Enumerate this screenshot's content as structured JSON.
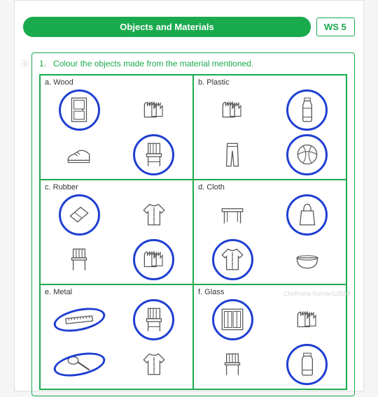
{
  "header": {
    "title": "Objects and Materials",
    "ws_label": "WS  5"
  },
  "instruction": {
    "number": "1.",
    "text": "Colour the objects made from the material mentioned."
  },
  "cells": [
    {
      "letter": "a.",
      "material": "Wood",
      "items": [
        {
          "name": "door",
          "circled": true
        },
        {
          "name": "gloves",
          "circled": false
        },
        {
          "name": "shoe",
          "circled": false
        },
        {
          "name": "chair",
          "circled": true
        }
      ]
    },
    {
      "letter": "b.",
      "material": "Plastic",
      "items": [
        {
          "name": "gloves",
          "circled": false
        },
        {
          "name": "bottle",
          "circled": true
        },
        {
          "name": "pants",
          "circled": false
        },
        {
          "name": "ball",
          "circled": true
        }
      ]
    },
    {
      "letter": "c.",
      "material": "Rubber",
      "items": [
        {
          "name": "eraser",
          "circled": true
        },
        {
          "name": "shirt",
          "circled": false
        },
        {
          "name": "stool",
          "circled": false
        },
        {
          "name": "gloves",
          "circled": true
        }
      ]
    },
    {
      "letter": "d.",
      "material": "Cloth",
      "items": [
        {
          "name": "table",
          "circled": false
        },
        {
          "name": "bag",
          "circled": true
        },
        {
          "name": "shirt",
          "circled": true
        },
        {
          "name": "bowl",
          "circled": false
        }
      ]
    },
    {
      "letter": "e.",
      "material": "Metal",
      "items": [
        {
          "name": "ruler",
          "circled": true,
          "ellipse": true
        },
        {
          "name": "chair",
          "circled": true
        },
        {
          "name": "spoon",
          "circled": true,
          "ellipse": true
        },
        {
          "name": "shirt",
          "circled": false
        }
      ]
    },
    {
      "letter": "f.",
      "material": "Glass",
      "items": [
        {
          "name": "window",
          "circled": true
        },
        {
          "name": "gloves",
          "circled": false
        },
        {
          "name": "stool",
          "circled": false
        },
        {
          "name": "jar",
          "circled": true
        }
      ]
    }
  ],
  "colors": {
    "green": "#1aaa4e",
    "circle": "#1f3fd1",
    "stroke": "#555555"
  },
  "watermark": "Chethana Kumari13588"
}
